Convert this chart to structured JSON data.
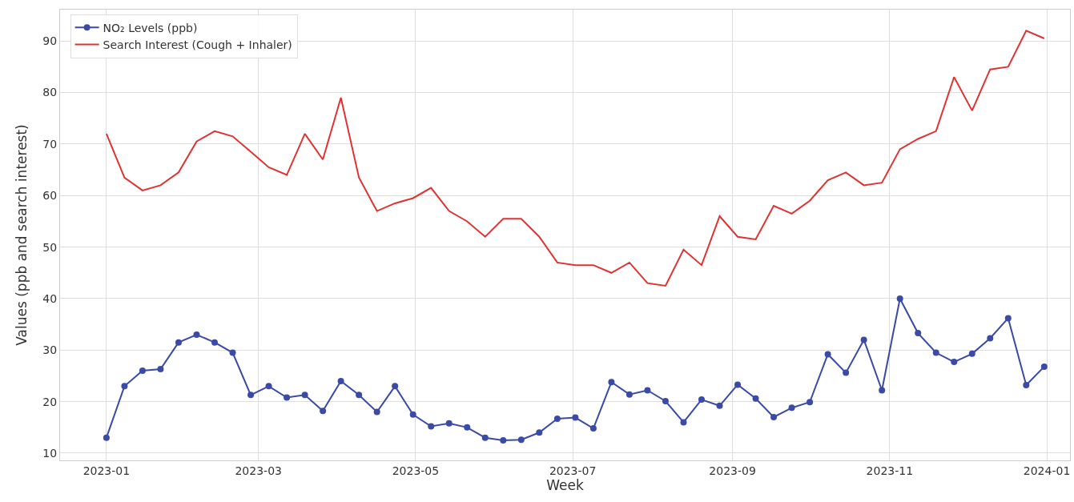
{
  "chart_data": {
    "type": "line",
    "xlabel": "Week",
    "ylabel": "Values (ppb and search interest)",
    "x": [
      "2023-01-01",
      "2023-01-08",
      "2023-01-15",
      "2023-01-22",
      "2023-01-29",
      "2023-02-05",
      "2023-02-12",
      "2023-02-19",
      "2023-02-26",
      "2023-03-05",
      "2023-03-12",
      "2023-03-19",
      "2023-03-26",
      "2023-04-02",
      "2023-04-09",
      "2023-04-16",
      "2023-04-23",
      "2023-04-30",
      "2023-05-07",
      "2023-05-14",
      "2023-05-21",
      "2023-05-28",
      "2023-06-04",
      "2023-06-11",
      "2023-06-18",
      "2023-06-25",
      "2023-07-02",
      "2023-07-09",
      "2023-07-16",
      "2023-07-23",
      "2023-07-30",
      "2023-08-06",
      "2023-08-13",
      "2023-08-20",
      "2023-08-27",
      "2023-09-03",
      "2023-09-10",
      "2023-09-17",
      "2023-09-24",
      "2023-10-01",
      "2023-10-08",
      "2023-10-15",
      "2023-10-22",
      "2023-10-29",
      "2023-11-05",
      "2023-11-12",
      "2023-11-19",
      "2023-11-26",
      "2023-12-03",
      "2023-12-10",
      "2023-12-17",
      "2023-12-24",
      "2023-12-31"
    ],
    "series": [
      {
        "name": "NO₂ Levels (ppb)",
        "color": "#3a4aa6",
        "marker": "circle",
        "values": [
          13,
          23,
          26,
          26.3,
          31.5,
          33,
          31.5,
          29.5,
          21.3,
          23,
          20.8,
          21.3,
          18.2,
          24,
          21.3,
          18,
          23,
          17.5,
          15.2,
          15.8,
          15,
          13,
          12.5,
          12.6,
          14,
          16.7,
          16.9,
          14.8,
          23.8,
          21.4,
          22.2,
          20.1,
          16,
          20.4,
          19.2,
          23.3,
          20.6,
          17,
          18.8,
          19.9,
          29.2,
          25.6,
          32,
          22.2,
          40,
          33.3,
          29.5,
          27.7,
          29.3,
          32.3,
          36.2,
          23.2,
          26.8
        ]
      },
      {
        "name": "Search Interest (Cough + Inhaler)",
        "color": "#e03232",
        "marker": "none",
        "values": [
          72,
          63.5,
          61,
          62,
          64.5,
          70.5,
          72.5,
          71.5,
          68.5,
          65.5,
          64,
          72,
          67,
          79,
          63.5,
          57,
          58.5,
          59.5,
          61.5,
          57,
          55,
          52,
          55.5,
          55.5,
          52,
          47,
          46.5,
          46.5,
          45,
          47,
          43,
          42.5,
          49.5,
          46.5,
          56,
          52,
          51.5,
          58,
          56.5,
          59,
          63,
          64.5,
          62,
          62.5,
          69,
          71,
          72.5,
          83,
          76.5,
          84.5,
          85,
          92,
          90.5
        ]
      }
    ],
    "xlim": [
      "2022-12-14",
      "2024-01-10"
    ],
    "xticks": [
      {
        "value": "2023-01-01",
        "label": "2023-01"
      },
      {
        "value": "2023-03-01",
        "label": "2023-03"
      },
      {
        "value": "2023-05-01",
        "label": "2023-05"
      },
      {
        "value": "2023-07-01",
        "label": "2023-07"
      },
      {
        "value": "2023-09-01",
        "label": "2023-09"
      },
      {
        "value": "2023-11-01",
        "label": "2023-11"
      },
      {
        "value": "2024-01-01",
        "label": "2024-01"
      }
    ],
    "ylim": [
      8.6,
      96.1
    ],
    "yticks": [
      10,
      20,
      30,
      40,
      50,
      60,
      70,
      80,
      90
    ],
    "grid": true,
    "legend": "top left",
    "line_style": "solid"
  }
}
